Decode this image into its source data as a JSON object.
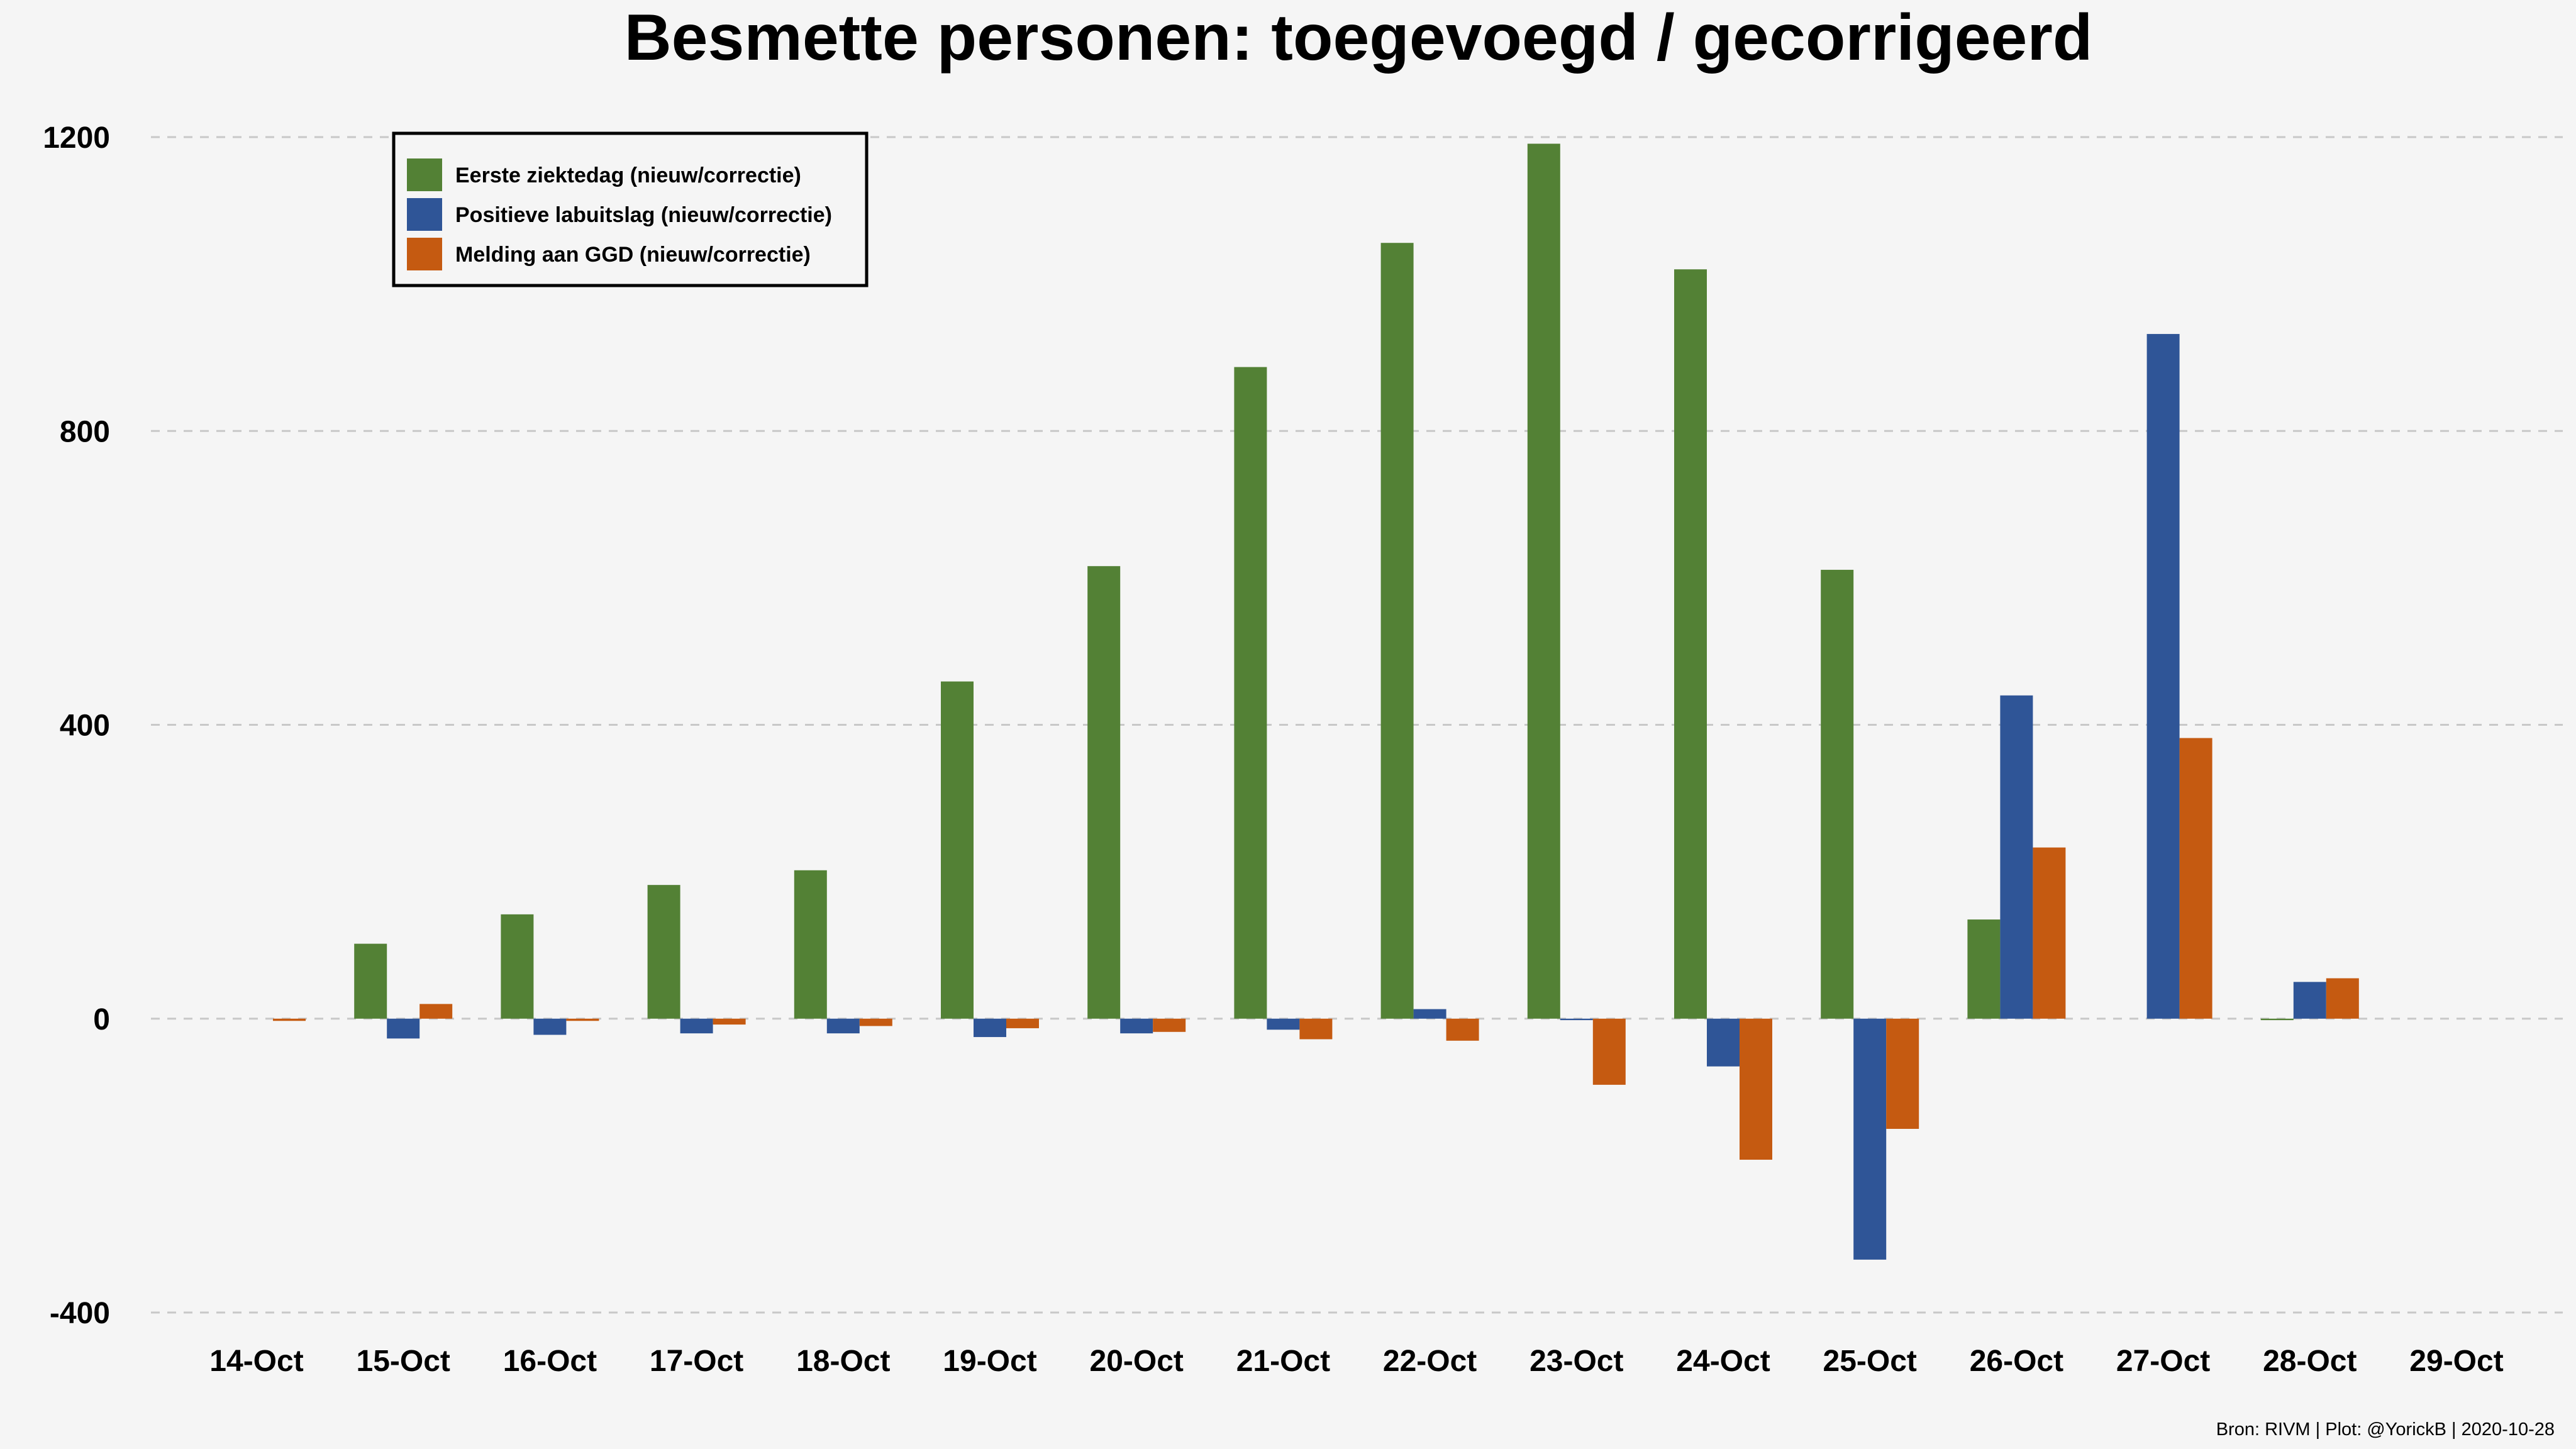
{
  "chart_data": {
    "type": "bar",
    "title": "Besmette personen: toegevoegd / gecorrigeerd",
    "xlabel": "",
    "ylabel": "",
    "ylim": [
      -400,
      1200
    ],
    "yticks": [
      1200,
      800,
      400,
      0,
      -400
    ],
    "grid": true,
    "legend_position": "top-left",
    "categories": [
      "14-Oct",
      "15-Oct",
      "16-Oct",
      "17-Oct",
      "18-Oct",
      "19-Oct",
      "20-Oct",
      "21-Oct",
      "22-Oct",
      "23-Oct",
      "24-Oct",
      "25-Oct",
      "26-Oct",
      "27-Oct",
      "28-Oct",
      "29-Oct"
    ],
    "series": [
      {
        "name": "Eerste ziektedag (nieuw/correctie)",
        "color": "#538135",
        "values": [
          0,
          102,
          142,
          182,
          202,
          459,
          616,
          887,
          1056,
          1191,
          1020,
          611,
          135,
          0,
          -2,
          0
        ]
      },
      {
        "name": "Positieve labuitslag (nieuw/correctie)",
        "color": "#2f5597",
        "values": [
          0,
          -27,
          -22,
          -20,
          -20,
          -25,
          -20,
          -15,
          13,
          -2,
          -65,
          -328,
          440,
          932,
          50,
          0
        ]
      },
      {
        "name": "Melding aan GGD (nieuw/correctie)",
        "color": "#c55a11",
        "values": [
          -3,
          20,
          -3,
          -8,
          -10,
          -13,
          -18,
          -28,
          -30,
          -90,
          -192,
          -150,
          233,
          382,
          55,
          0
        ]
      }
    ]
  },
  "caption": "Bron: RIVM | Plot: @YorickB |  2020-10-28"
}
